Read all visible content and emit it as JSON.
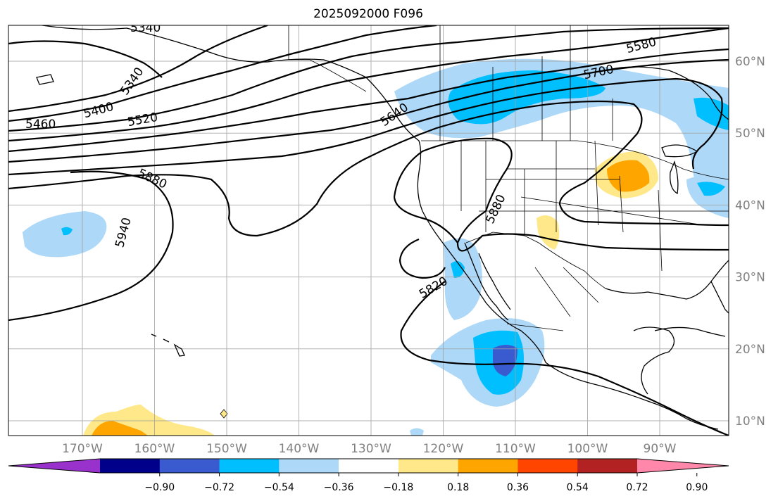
{
  "title": "2025092000 F096",
  "map": {
    "lon_ticks": [
      {
        "lon": -170,
        "label": "170°W"
      },
      {
        "lon": -160,
        "label": "160°W"
      },
      {
        "lon": -150,
        "label": "150°W"
      },
      {
        "lon": -140,
        "label": "140°W"
      },
      {
        "lon": -130,
        "label": "130°W"
      },
      {
        "lon": -120,
        "label": "120°W"
      },
      {
        "lon": -110,
        "label": "110°W"
      },
      {
        "lon": -100,
        "label": "100°W"
      },
      {
        "lon": -90,
        "label": "90°W"
      }
    ],
    "lat_ticks": [
      {
        "lat": 60,
        "label": "60°N"
      },
      {
        "lat": 50,
        "label": "50°N"
      },
      {
        "lat": 40,
        "label": "40°N"
      },
      {
        "lat": 30,
        "label": "30°N"
      },
      {
        "lat": 20,
        "label": "20°N"
      },
      {
        "lat": 10,
        "label": "10°N"
      }
    ],
    "contour_labels": [
      "5340",
      "5340",
      "5400",
      "5460",
      "5520",
      "5580",
      "5640",
      "5700",
      "5820",
      "5880",
      "5880",
      "5940"
    ]
  },
  "colorbar": {
    "colors": [
      "#9932cc",
      "#00008b",
      "#3a5bd0",
      "#00bfff",
      "#add8f8",
      "#ffffff",
      "#ffe88a",
      "#ffa500",
      "#ff4500",
      "#b22222",
      "#ff88aa"
    ],
    "tick_labels": [
      "−0.90",
      "−0.72",
      "−0.54",
      "−0.36",
      "−0.18",
      "0.18",
      "0.36",
      "0.54",
      "0.72",
      "0.90"
    ]
  }
}
